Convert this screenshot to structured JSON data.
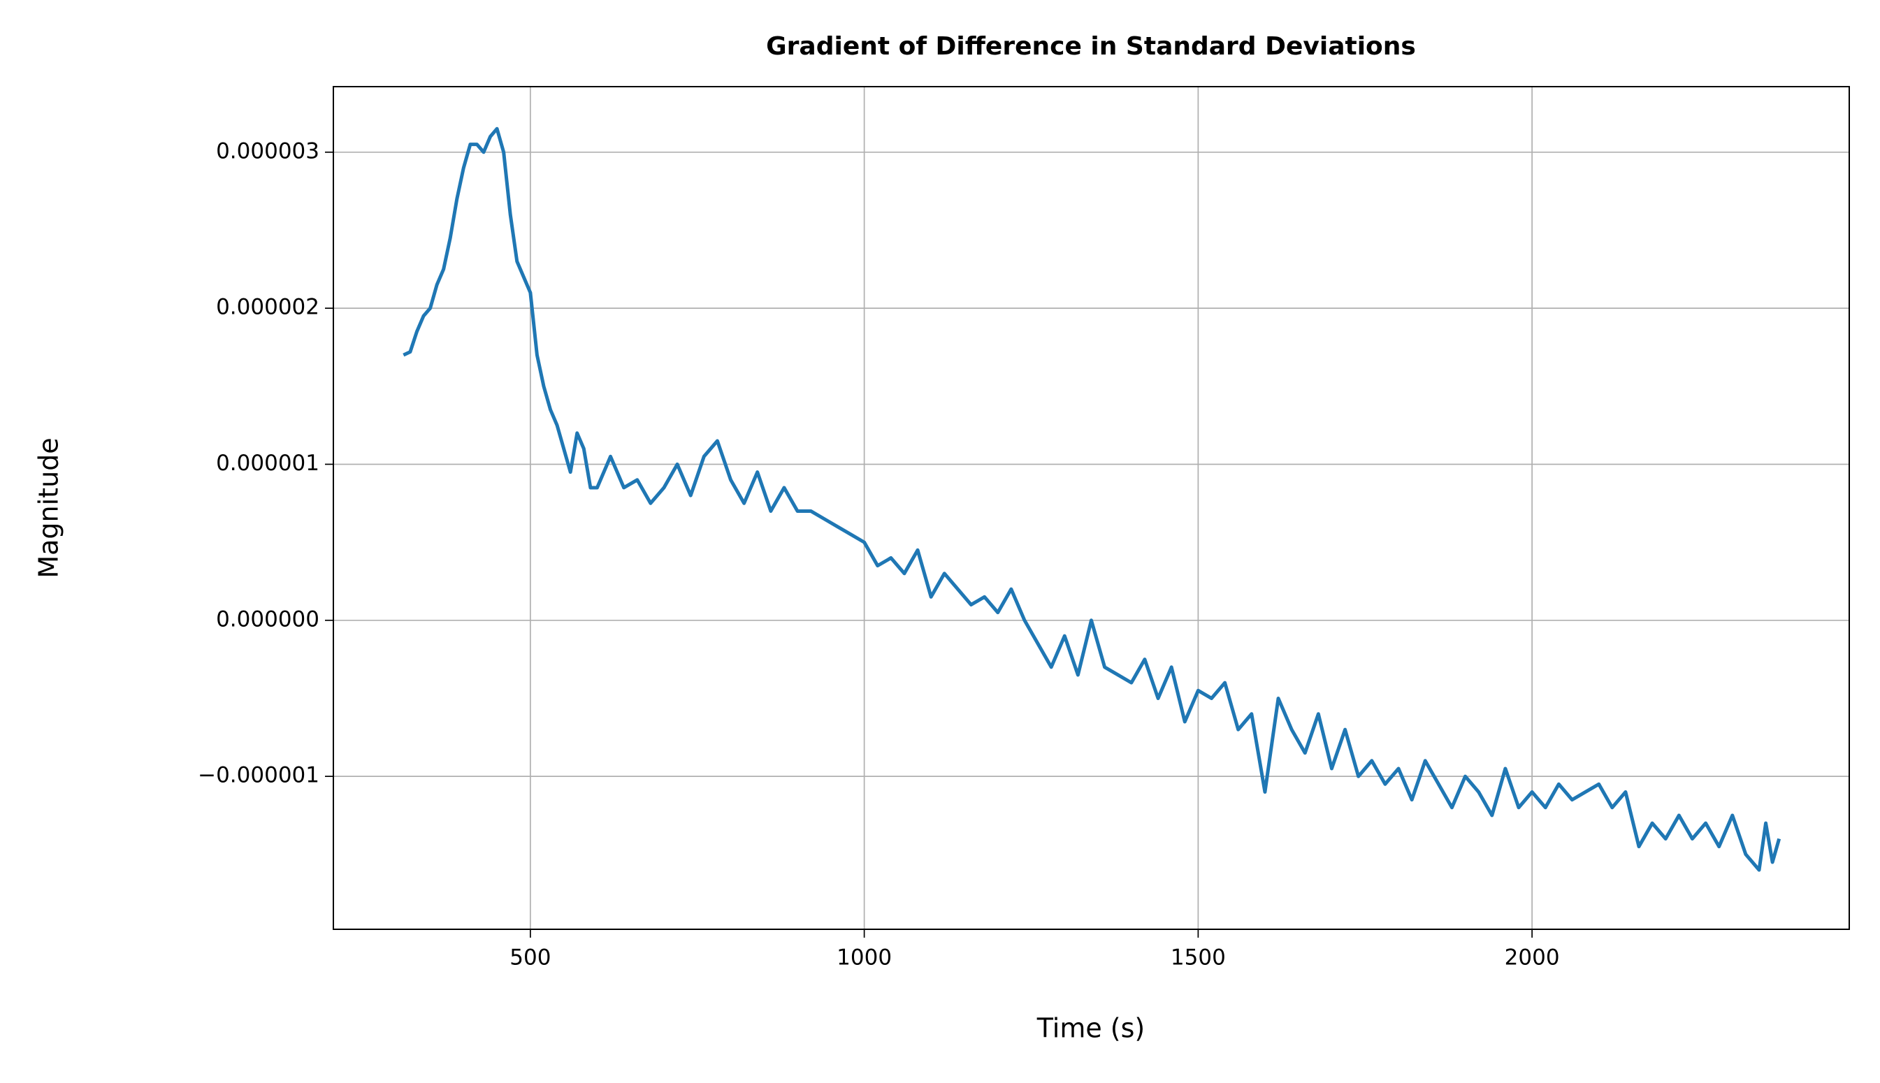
{
  "chart_data": {
    "type": "line",
    "title": "Gradient of Difference in Standard Deviations",
    "x_label": "Time (s)",
    "y_label": "Magnitude",
    "color": "#1f77b4",
    "grid": true,
    "xlim": [
      205,
      2475
    ],
    "ylim": [
      -1.98e-06,
      3.42e-06
    ],
    "xticks": [
      500,
      1000,
      1500,
      2000
    ],
    "yticks": [
      {
        "value": -1e-06,
        "label": "−0.000001"
      },
      {
        "value": 0,
        "label": "0.000000"
      },
      1e-06,
      2e-06,
      3e-06
    ],
    "x": [
      310,
      320,
      330,
      340,
      350,
      360,
      370,
      380,
      390,
      400,
      410,
      420,
      430,
      440,
      450,
      460,
      470,
      480,
      490,
      500,
      510,
      520,
      530,
      540,
      550,
      560,
      570,
      580,
      590,
      600,
      620,
      640,
      660,
      680,
      700,
      720,
      740,
      760,
      780,
      800,
      820,
      840,
      860,
      880,
      900,
      920,
      940,
      960,
      980,
      1000,
      1020,
      1040,
      1060,
      1080,
      1100,
      1120,
      1140,
      1160,
      1180,
      1200,
      1220,
      1240,
      1260,
      1280,
      1300,
      1320,
      1340,
      1360,
      1380,
      1400,
      1420,
      1440,
      1460,
      1480,
      1500,
      1520,
      1540,
      1560,
      1580,
      1600,
      1620,
      1640,
      1660,
      1680,
      1700,
      1720,
      1740,
      1760,
      1780,
      1800,
      1820,
      1840,
      1860,
      1880,
      1900,
      1920,
      1940,
      1960,
      1980,
      2000,
      2020,
      2040,
      2060,
      2080,
      2100,
      2120,
      2140,
      2160,
      2180,
      2200,
      2220,
      2240,
      2260,
      2280,
      2300,
      2320,
      2340,
      2350,
      2360,
      2370
    ],
    "values": [
      1.7e-06,
      1.72e-06,
      1.85e-06,
      1.95e-06,
      2e-06,
      2.15e-06,
      2.25e-06,
      2.45e-06,
      2.7e-06,
      2.9e-06,
      3.05e-06,
      3.05e-06,
      3e-06,
      3.1e-06,
      3.15e-06,
      3e-06,
      2.6e-06,
      2.3e-06,
      2.2e-06,
      2.1e-06,
      1.7e-06,
      1.5e-06,
      1.35e-06,
      1.25e-06,
      1.1e-06,
      9.5e-07,
      1.2e-06,
      1.1e-06,
      8.5e-07,
      8.5e-07,
      1.05e-06,
      8.5e-07,
      9e-07,
      7.5e-07,
      8.5e-07,
      1e-06,
      8e-07,
      1.05e-06,
      1.15e-06,
      9e-07,
      7.5e-07,
      9.5e-07,
      7e-07,
      8.5e-07,
      7e-07,
      7e-07,
      6.5e-07,
      6e-07,
      5.5e-07,
      5e-07,
      3.5e-07,
      4e-07,
      3e-07,
      4.5e-07,
      1.5e-07,
      3e-07,
      2e-07,
      1e-07,
      1.5e-07,
      5e-08,
      2e-07,
      0.0,
      -1.5e-07,
      -3e-07,
      -1e-07,
      -3.5e-07,
      0.0,
      -3e-07,
      -3.5e-07,
      -4e-07,
      -2.5e-07,
      -5e-07,
      -3e-07,
      -6.5e-07,
      -4.5e-07,
      -5e-07,
      -4e-07,
      -7e-07,
      -6e-07,
      -1.1e-06,
      -5e-07,
      -7e-07,
      -8.5e-07,
      -6e-07,
      -9.5e-07,
      -7e-07,
      -1e-06,
      -9e-07,
      -1.05e-06,
      -9.5e-07,
      -1.15e-06,
      -9e-07,
      -1.05e-06,
      -1.2e-06,
      -1e-06,
      -1.1e-06,
      -1.25e-06,
      -9.5e-07,
      -1.2e-06,
      -1.1e-06,
      -1.2e-06,
      -1.05e-06,
      -1.15e-06,
      -1.1e-06,
      -1.05e-06,
      -1.2e-06,
      -1.1e-06,
      -1.45e-06,
      -1.3e-06,
      -1.4e-06,
      -1.25e-06,
      -1.4e-06,
      -1.3e-06,
      -1.45e-06,
      -1.25e-06,
      -1.5e-06,
      -1.6e-06,
      -1.3e-06,
      -1.55e-06,
      -1.4e-06
    ]
  }
}
